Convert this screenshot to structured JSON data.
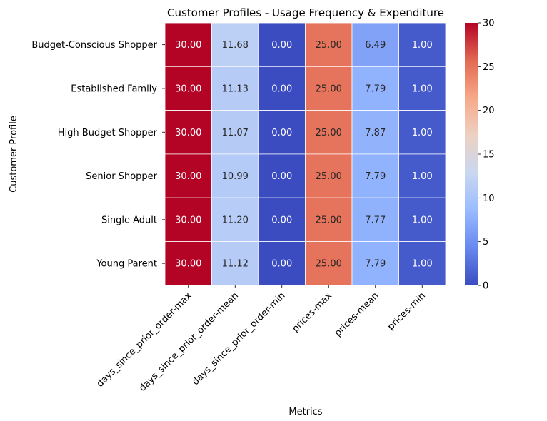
{
  "chart_data": {
    "type": "heatmap",
    "title": "Customer Profiles - Usage Frequency & Expenditure",
    "xlabel": "Metrics",
    "ylabel": "Customer Profile",
    "x_categories": [
      "days_since_prior_order-max",
      "days_since_prior_order-mean",
      "days_since_prior_order-min",
      "prices-max",
      "prices-mean",
      "prices-min"
    ],
    "y_categories": [
      "Budget-Conscious Shopper",
      "Established Family",
      "High Budget Shopper",
      "Senior Shopper",
      "Single Adult",
      "Young Parent"
    ],
    "values": [
      [
        30.0,
        11.68,
        0.0,
        25.0,
        6.49,
        1.0
      ],
      [
        30.0,
        11.13,
        0.0,
        25.0,
        7.79,
        1.0
      ],
      [
        30.0,
        11.07,
        0.0,
        25.0,
        7.87,
        1.0
      ],
      [
        30.0,
        10.99,
        0.0,
        25.0,
        7.79,
        1.0
      ],
      [
        30.0,
        11.2,
        0.0,
        25.0,
        7.77,
        1.0
      ],
      [
        30.0,
        11.12,
        0.0,
        25.0,
        7.79,
        1.0
      ]
    ],
    "value_format": "0.00",
    "colormap": "coolwarm",
    "colormap_stops": [
      "#3b4cc0",
      "#6788ee",
      "#9abbff",
      "#c9d7f0",
      "#edd1c2",
      "#f7a889",
      "#e26952",
      "#b40426"
    ],
    "color_range": [
      0,
      30
    ],
    "colorbar_ticks": [
      0,
      5,
      10,
      15,
      20,
      25,
      30
    ],
    "grid": false,
    "cell_separator_color": "#ffffff"
  }
}
